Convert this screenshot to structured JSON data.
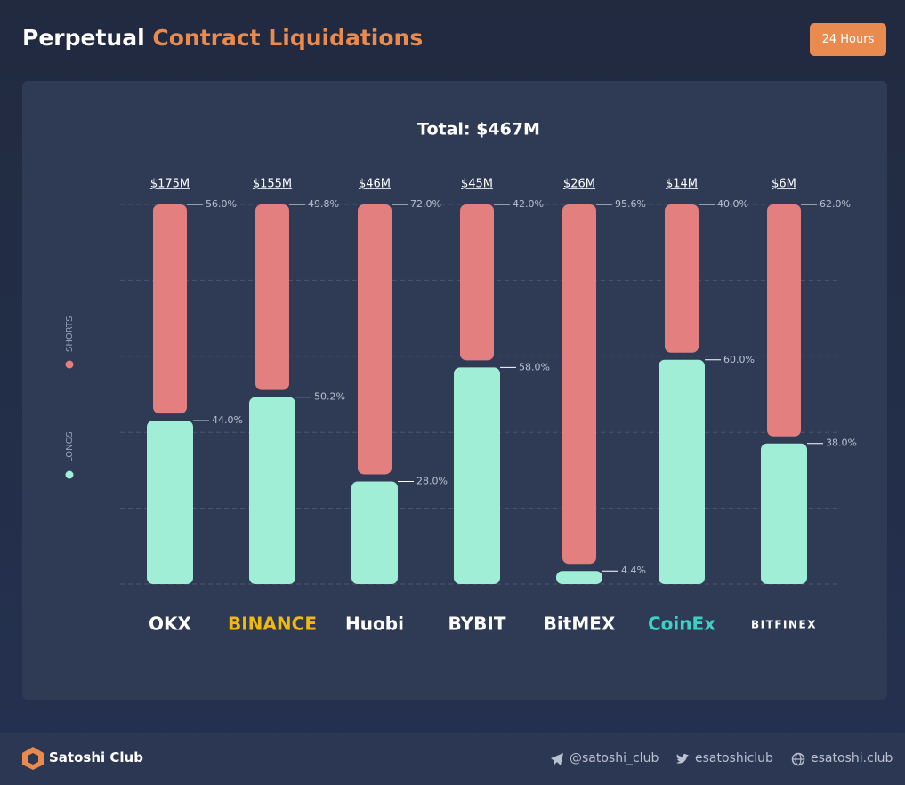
{
  "header": {
    "title_part1": "Perpetual",
    "title_part2": "Contract Liquidations",
    "badge": "24 Hours"
  },
  "chart_data": {
    "type": "split_bar",
    "title": "Total: $467M",
    "categories": [
      "OKX",
      "BINANCE",
      "Huobi",
      "BYBIT",
      "BitMEX",
      "CoinEx",
      "BITFINEX"
    ],
    "totals": {
      "values": [
        175,
        155,
        46,
        45,
        26,
        14,
        6
      ],
      "value_labels": [
        "$175M",
        "$155M",
        "$46M",
        "$45M",
        "$26M",
        "$14M",
        "$6M"
      ]
    },
    "series": [
      {
        "name": "SHORTS",
        "color": "#e47f7f",
        "values": [
          56.0,
          49.8,
          72.0,
          42.0,
          95.6,
          40.0,
          62.0
        ],
        "value_labels": [
          "56.0%",
          "49.8%",
          "72.0%",
          "42.0%",
          "95.6%",
          "40.0%",
          "62.0%"
        ]
      },
      {
        "name": "LONGS",
        "color": "#a0eed6",
        "values": [
          44.0,
          50.2,
          28.0,
          58.0,
          4.4,
          60.0,
          38.0
        ],
        "value_labels": [
          "44.0%",
          "50.2%",
          "28.0%",
          "58.0%",
          "4.4%",
          "60.0%",
          "38.0%"
        ]
      }
    ],
    "ylim": [
      0,
      100
    ],
    "yticks": [
      0,
      20,
      40,
      60,
      80,
      100
    ],
    "grid": true
  },
  "footer": {
    "brand": "Satoshi Club",
    "telegram": "@satoshi_club",
    "twitter": "esatoshiclub",
    "website": "esatoshi.club"
  }
}
